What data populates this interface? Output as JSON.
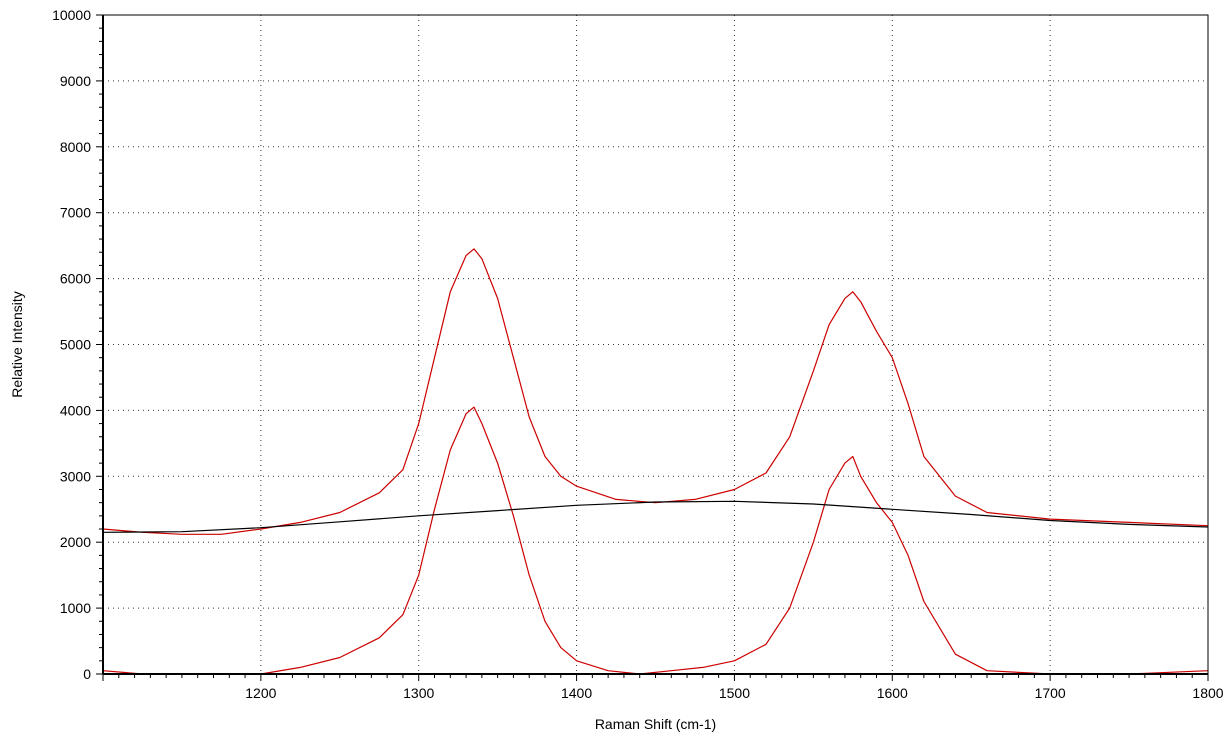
{
  "chart_data": {
    "type": "line",
    "xlabel": "Raman Shift (cm-1)",
    "ylabel": "Relative Intensity",
    "xlim": [
      1100,
      1800
    ],
    "ylim": [
      0,
      10000
    ],
    "x_ticks": [
      1200,
      1300,
      1400,
      1500,
      1600,
      1700,
      1800
    ],
    "x_tick_labels": [
      "1200",
      "1300",
      "1400",
      "1500",
      "1600",
      "1700",
      "1800"
    ],
    "y_ticks": [
      0,
      1000,
      2000,
      3000,
      4000,
      5000,
      6000,
      7000,
      8000,
      9000,
      10000
    ],
    "y_tick_labels": [
      "0",
      "1000",
      "2000",
      "3000",
      "4000",
      "5000",
      "6000",
      "7000",
      "8000",
      "9000",
      "10000"
    ],
    "grid": true,
    "colors": {
      "raw": "#cc0000",
      "corrected": "#cc0000",
      "baseline": "#000000"
    },
    "series": [
      {
        "color": "#cc0000",
        "x": [
          1100,
          1125,
          1150,
          1175,
          1200,
          1225,
          1250,
          1275,
          1290,
          1300,
          1310,
          1320,
          1330,
          1335,
          1340,
          1350,
          1360,
          1370,
          1380,
          1390,
          1400,
          1425,
          1450,
          1475,
          1500,
          1520,
          1535,
          1550,
          1560,
          1570,
          1575,
          1580,
          1590,
          1600,
          1610,
          1620,
          1640,
          1660,
          1700,
          1750,
          1800
        ],
        "y": [
          2200,
          2150,
          2120,
          2120,
          2200,
          2300,
          2450,
          2750,
          3100,
          3800,
          4800,
          5800,
          6350,
          6450,
          6300,
          5700,
          4800,
          3900,
          3300,
          3000,
          2850,
          2650,
          2600,
          2650,
          2800,
          3050,
          3600,
          4600,
          5300,
          5700,
          5800,
          5650,
          5200,
          4800,
          4100,
          3300,
          2700,
          2450,
          2350,
          2300,
          2250
        ]
      },
      {
        "color": "#cc0000",
        "x": [
          1100,
          1125,
          1150,
          1175,
          1200,
          1225,
          1250,
          1275,
          1290,
          1300,
          1310,
          1320,
          1330,
          1335,
          1340,
          1350,
          1360,
          1370,
          1380,
          1390,
          1400,
          1420,
          1440,
          1460,
          1480,
          1500,
          1520,
          1535,
          1550,
          1560,
          1570,
          1575,
          1580,
          1590,
          1600,
          1610,
          1620,
          1640,
          1660,
          1700,
          1750,
          1800
        ],
        "y": [
          50,
          0,
          0,
          0,
          0,
          100,
          250,
          550,
          900,
          1500,
          2500,
          3400,
          3950,
          4050,
          3800,
          3200,
          2400,
          1500,
          800,
          400,
          200,
          50,
          0,
          50,
          100,
          200,
          450,
          1000,
          2000,
          2800,
          3200,
          3300,
          3000,
          2600,
          2300,
          1800,
          1100,
          300,
          50,
          0,
          0,
          50
        ]
      },
      {
        "color": "#000000",
        "x": [
          1100,
          1150,
          1200,
          1250,
          1300,
          1350,
          1400,
          1450,
          1500,
          1550,
          1600,
          1650,
          1700,
          1750,
          1800
        ],
        "y": [
          2150,
          2160,
          2220,
          2310,
          2400,
          2480,
          2560,
          2610,
          2620,
          2580,
          2500,
          2420,
          2330,
          2270,
          2230
        ]
      }
    ]
  }
}
